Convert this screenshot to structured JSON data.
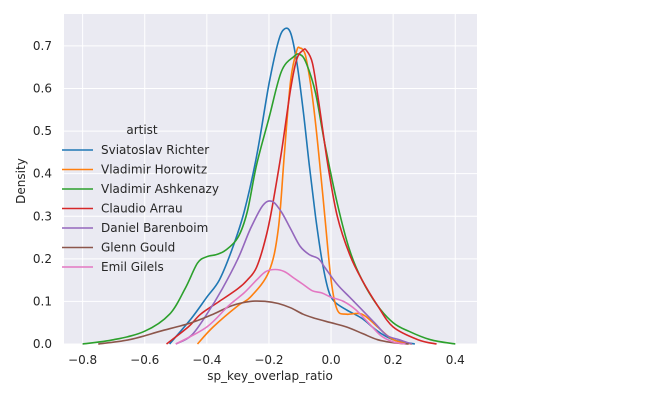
{
  "chart_data": {
    "type": "line",
    "xlabel": "sp_key_overlap_ratio",
    "ylabel": "Density",
    "xlim": [
      -0.86,
      0.47
    ],
    "ylim": [
      0,
      0.775
    ],
    "xticks": [
      -0.8,
      -0.6,
      -0.4,
      -0.2,
      0.0,
      0.2,
      0.4
    ],
    "xtick_labels": [
      "−0.8",
      "−0.6",
      "−0.4",
      "−0.2",
      "0.0",
      "0.2",
      "0.4"
    ],
    "yticks": [
      0.0,
      0.1,
      0.2,
      0.3,
      0.4,
      0.5,
      0.6,
      0.7
    ],
    "ytick_labels": [
      "0.0",
      "0.1",
      "0.2",
      "0.3",
      "0.4",
      "0.5",
      "0.6",
      "0.7"
    ],
    "grid": true,
    "background": "#eaeaf2",
    "legend": {
      "title": "artist",
      "placement": "center-left"
    },
    "series": [
      {
        "name": "Sviatoslav Richter",
        "color": "#1f77b4",
        "x": [
          -0.52,
          -0.45,
          -0.4,
          -0.36,
          -0.32,
          -0.28,
          -0.24,
          -0.2,
          -0.17,
          -0.15,
          -0.13,
          -0.11,
          -0.09,
          -0.07,
          -0.05,
          -0.03,
          -0.01,
          0.01,
          0.05,
          0.1,
          0.15,
          0.2,
          0.27
        ],
        "y": [
          0.0,
          0.06,
          0.11,
          0.15,
          0.22,
          0.31,
          0.44,
          0.61,
          0.71,
          0.74,
          0.73,
          0.66,
          0.55,
          0.42,
          0.3,
          0.2,
          0.13,
          0.1,
          0.08,
          0.06,
          0.03,
          0.01,
          0.0
        ]
      },
      {
        "name": "Vladimir Horowitz",
        "color": "#ff7f0e",
        "x": [
          -0.43,
          -0.38,
          -0.3,
          -0.26,
          -0.2,
          -0.17,
          -0.15,
          -0.13,
          -0.11,
          -0.1,
          -0.09,
          -0.08,
          -0.06,
          -0.04,
          -0.02,
          0.0,
          0.02,
          0.05,
          0.1,
          0.15,
          0.2,
          0.26
        ],
        "y": [
          0.0,
          0.04,
          0.09,
          0.11,
          0.17,
          0.27,
          0.45,
          0.62,
          0.69,
          0.695,
          0.69,
          0.67,
          0.58,
          0.45,
          0.3,
          0.15,
          0.08,
          0.07,
          0.07,
          0.04,
          0.01,
          0.0
        ]
      },
      {
        "name": "Vladimir Ashkenazy",
        "color": "#2ca02c",
        "x": [
          -0.8,
          -0.7,
          -0.6,
          -0.52,
          -0.47,
          -0.43,
          -0.4,
          -0.37,
          -0.34,
          -0.3,
          -0.27,
          -0.24,
          -0.2,
          -0.16,
          -0.12,
          -0.1,
          -0.08,
          -0.05,
          -0.02,
          0.02,
          0.06,
          0.1,
          0.15,
          0.2,
          0.25,
          0.32,
          0.4
        ],
        "y": [
          0.0,
          0.01,
          0.03,
          0.07,
          0.13,
          0.19,
          0.205,
          0.21,
          0.22,
          0.25,
          0.31,
          0.42,
          0.53,
          0.64,
          0.675,
          0.68,
          0.66,
          0.59,
          0.47,
          0.33,
          0.22,
          0.15,
          0.09,
          0.05,
          0.03,
          0.01,
          0.0
        ]
      },
      {
        "name": "Claudio Arrau",
        "color": "#d62728",
        "x": [
          -0.53,
          -0.46,
          -0.42,
          -0.36,
          -0.3,
          -0.27,
          -0.24,
          -0.21,
          -0.19,
          -0.16,
          -0.13,
          -0.11,
          -0.09,
          -0.08,
          -0.06,
          -0.04,
          -0.01,
          0.02,
          0.06,
          0.1,
          0.15,
          0.2,
          0.28,
          0.34
        ],
        "y": [
          0.0,
          0.04,
          0.07,
          0.1,
          0.13,
          0.15,
          0.18,
          0.25,
          0.32,
          0.45,
          0.6,
          0.67,
          0.69,
          0.69,
          0.66,
          0.57,
          0.42,
          0.3,
          0.21,
          0.15,
          0.09,
          0.04,
          0.01,
          0.0
        ]
      },
      {
        "name": "Daniel Barenboim",
        "color": "#9467bd",
        "x": [
          -0.5,
          -0.45,
          -0.4,
          -0.35,
          -0.3,
          -0.26,
          -0.22,
          -0.19,
          -0.16,
          -0.13,
          -0.1,
          -0.07,
          -0.04,
          -0.02,
          0.02,
          0.06,
          0.1,
          0.14,
          0.18,
          0.22,
          0.26
        ],
        "y": [
          0.0,
          0.02,
          0.07,
          0.13,
          0.2,
          0.27,
          0.325,
          0.335,
          0.31,
          0.27,
          0.23,
          0.21,
          0.2,
          0.18,
          0.14,
          0.11,
          0.08,
          0.05,
          0.02,
          0.01,
          0.0
        ]
      },
      {
        "name": "Glenn Gould",
        "color": "#8c564b",
        "x": [
          -0.75,
          -0.65,
          -0.55,
          -0.45,
          -0.38,
          -0.32,
          -0.26,
          -0.21,
          -0.17,
          -0.13,
          -0.09,
          -0.05,
          0.0,
          0.05,
          0.1,
          0.15,
          0.2,
          0.25
        ],
        "y": [
          0.0,
          0.01,
          0.03,
          0.05,
          0.07,
          0.09,
          0.1,
          0.1,
          0.095,
          0.085,
          0.07,
          0.06,
          0.05,
          0.04,
          0.025,
          0.01,
          0.003,
          0.0
        ]
      },
      {
        "name": "Emil Gilels",
        "color": "#e377c2",
        "x": [
          -0.5,
          -0.4,
          -0.33,
          -0.28,
          -0.24,
          -0.21,
          -0.18,
          -0.15,
          -0.12,
          -0.09,
          -0.06,
          -0.03,
          0.0,
          0.04,
          0.08,
          0.12,
          0.16,
          0.2,
          0.24
        ],
        "y": [
          0.0,
          0.04,
          0.09,
          0.12,
          0.15,
          0.17,
          0.175,
          0.17,
          0.155,
          0.14,
          0.125,
          0.12,
          0.11,
          0.1,
          0.08,
          0.05,
          0.02,
          0.005,
          0.0
        ]
      }
    ]
  }
}
